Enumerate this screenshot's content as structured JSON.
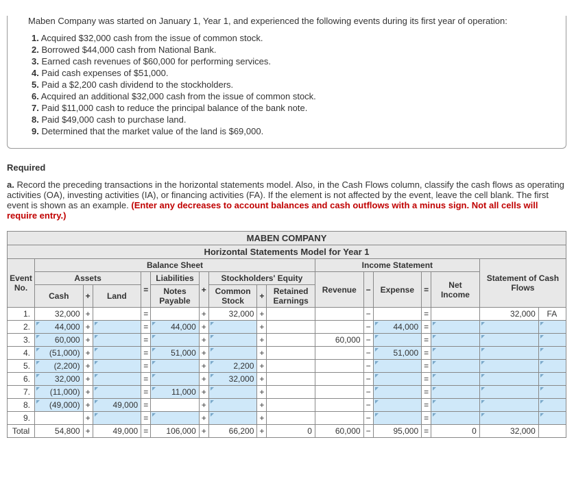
{
  "intro": "Maben Company was started on January 1, Year 1, and experienced the following events during its first year of operation:",
  "events": [
    {
      "n": "1.",
      "t": "Acquired $32,000 cash from the issue of common stock."
    },
    {
      "n": "2.",
      "t": "Borrowed $44,000 cash from National Bank."
    },
    {
      "n": "3.",
      "t": "Earned cash revenues of $60,000 for performing services."
    },
    {
      "n": "4.",
      "t": "Paid cash expenses of $51,000."
    },
    {
      "n": "5.",
      "t": "Paid a $2,200 cash dividend to the stockholders."
    },
    {
      "n": "6.",
      "t": "Acquired an additional $32,000 cash from the issue of common stock."
    },
    {
      "n": "7.",
      "t": "Paid $11,000 cash to reduce the principal balance of the bank note."
    },
    {
      "n": "8.",
      "t": "Paid $49,000 cash to purchase land."
    },
    {
      "n": "9.",
      "t": "Determined that the market value of the land is $69,000."
    }
  ],
  "required_heading": "Required",
  "required_prefix": "a.",
  "required_body": " Record the preceding transactions in the horizontal statements model. Also, in the Cash Flows column, classify the cash flows as operating activities (OA), investing activities (IA), or financing activities (FA). If the element is not affected by the event, leave the cell blank. The first event is shown as an example. ",
  "required_red": "(Enter any decreases to account balances and cash outflows with a minus sign. Not all cells will require entry.)",
  "table": {
    "company": "MABEN COMPANY",
    "subtitle": "Horizontal Statements Model for Year 1",
    "h_balance": "Balance Sheet",
    "h_income": "Income Statement",
    "h_assets": "Assets",
    "h_event": "Event No.",
    "h_liab": "Liabilities",
    "h_se": "Stockholders' Equity",
    "h_cash": "Cash",
    "h_land": "Land",
    "h_notes": "Notes Payable",
    "h_common": "Common Stock",
    "h_retained": "Retained Earnings",
    "h_revenue": "Revenue",
    "h_expense": "Expense",
    "h_netincome": "Net Income",
    "h_cashflows": "Statement of Cash Flows",
    "h_total": "Total",
    "rows": [
      {
        "ev": "1.",
        "cash": "32,000",
        "cash_in": false,
        "land": "",
        "land_in": false,
        "np": "",
        "np_in": false,
        "cs": "32,000",
        "cs_in": false,
        "re": "",
        "re_in": false,
        "rev": "",
        "rev_in": false,
        "exp": "",
        "exp_in": false,
        "ni": "",
        "ni_in": false,
        "cf": "32,000",
        "cf_in": false,
        "cft": "FA",
        "cft_in": false
      },
      {
        "ev": "2.",
        "cash": "44,000",
        "cash_in": true,
        "land": "",
        "land_in": true,
        "np": "44,000",
        "np_in": true,
        "cs": "",
        "cs_in": true,
        "re": "",
        "re_in": false,
        "rev": "",
        "rev_in": false,
        "exp": "44,000",
        "exp_in": true,
        "ni": "",
        "ni_in": true,
        "cf": "",
        "cf_in": true,
        "cft": "",
        "cft_in": true
      },
      {
        "ev": "3.",
        "cash": "60,000",
        "cash_in": true,
        "land": "",
        "land_in": true,
        "np": "",
        "np_in": true,
        "cs": "",
        "cs_in": true,
        "re": "",
        "re_in": false,
        "rev": "60,000",
        "rev_in": false,
        "exp": "",
        "exp_in": true,
        "ni": "",
        "ni_in": true,
        "cf": "",
        "cf_in": true,
        "cft": "",
        "cft_in": true
      },
      {
        "ev": "4.",
        "cash": "(51,000)",
        "cash_in": true,
        "land": "",
        "land_in": true,
        "np": "51,000",
        "np_in": true,
        "cs": "",
        "cs_in": true,
        "re": "",
        "re_in": false,
        "rev": "",
        "rev_in": false,
        "exp": "51,000",
        "exp_in": true,
        "ni": "",
        "ni_in": true,
        "cf": "",
        "cf_in": true,
        "cft": "",
        "cft_in": true
      },
      {
        "ev": "5.",
        "cash": "(2,200)",
        "cash_in": true,
        "land": "",
        "land_in": true,
        "np": "",
        "np_in": true,
        "cs": "2,200",
        "cs_in": true,
        "re": "",
        "re_in": false,
        "rev": "",
        "rev_in": false,
        "exp": "",
        "exp_in": true,
        "ni": "",
        "ni_in": true,
        "cf": "",
        "cf_in": true,
        "cft": "",
        "cft_in": true
      },
      {
        "ev": "6.",
        "cash": "32,000",
        "cash_in": true,
        "land": "",
        "land_in": true,
        "np": "",
        "np_in": true,
        "cs": "32,000",
        "cs_in": true,
        "re": "",
        "re_in": false,
        "rev": "",
        "rev_in": false,
        "exp": "",
        "exp_in": true,
        "ni": "",
        "ni_in": true,
        "cf": "",
        "cf_in": true,
        "cft": "",
        "cft_in": true
      },
      {
        "ev": "7.",
        "cash": "(11,000)",
        "cash_in": true,
        "land": "",
        "land_in": true,
        "np": "11,000",
        "np_in": true,
        "cs": "",
        "cs_in": true,
        "re": "",
        "re_in": false,
        "rev": "",
        "rev_in": false,
        "exp": "",
        "exp_in": true,
        "ni": "",
        "ni_in": true,
        "cf": "",
        "cf_in": true,
        "cft": "",
        "cft_in": true
      },
      {
        "ev": "8.",
        "cash": "(49,000)",
        "cash_in": true,
        "land": "49,000",
        "land_in": true,
        "np": "",
        "np_in": false,
        "cs": "",
        "cs_in": true,
        "re": "",
        "re_in": false,
        "rev": "",
        "rev_in": false,
        "exp": "",
        "exp_in": true,
        "ni": "",
        "ni_in": true,
        "cf": "",
        "cf_in": true,
        "cft": "",
        "cft_in": true
      },
      {
        "ev": "9.",
        "cash": "",
        "cash_in": false,
        "land": "",
        "land_in": true,
        "np": "",
        "np_in": true,
        "cs": "",
        "cs_in": true,
        "re": "",
        "re_in": false,
        "rev": "",
        "rev_in": false,
        "exp": "",
        "exp_in": true,
        "ni": "",
        "ni_in": true,
        "cf": "",
        "cf_in": true,
        "cft": "",
        "cft_in": true
      }
    ],
    "total": {
      "cash": "54,800",
      "land": "49,000",
      "np": "106,000",
      "cs": "66,200",
      "re": "0",
      "rev": "60,000",
      "exp": "95,000",
      "ni": "0",
      "cf": "32,000",
      "cft": ""
    }
  }
}
